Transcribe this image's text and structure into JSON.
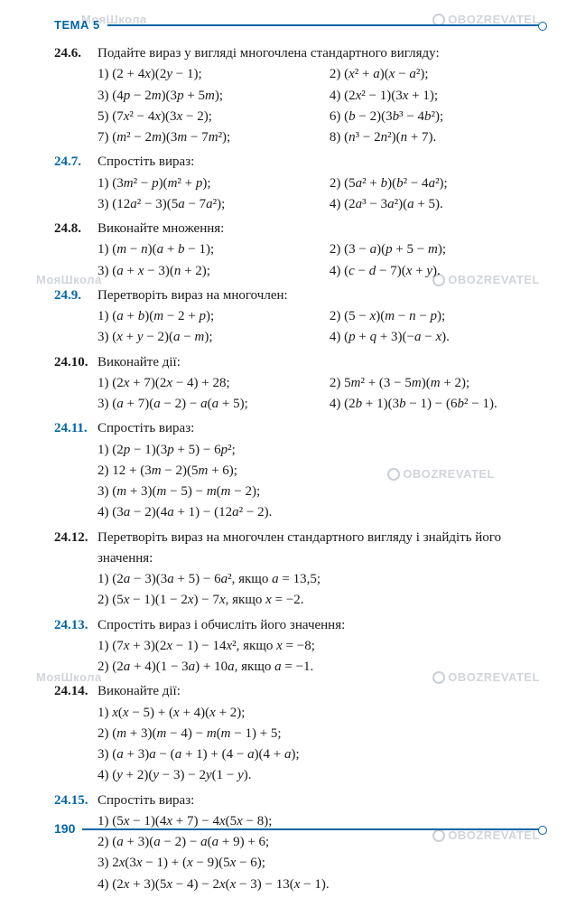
{
  "header": {
    "tema": "ТЕМА 5"
  },
  "footer": {
    "page": "190"
  },
  "watermark_text": "OBOZREVATEL",
  "watermark_prefix": "МояШкола",
  "problems": [
    {
      "num": "24.6.",
      "blue": false,
      "prompt": "Подайте вираз у вигляді многочлена стандартного вигляду:",
      "layout": "two",
      "left": [
        "1) (2 + 4x)(2y − 1);",
        "3) (4p − 2m)(3p + 5m);",
        "5) (7x² − 4x)(3x − 2);",
        "7) (m² − 2m)(3m − 7m²);"
      ],
      "right": [
        "2) (x² + a)(x − a²);",
        "4) (2x² − 1)(3x + 1);",
        "6) (b − 2)(3b³ − 4b²);",
        "8) (n³ − 2n²)(n + 7)."
      ]
    },
    {
      "num": "24.7.",
      "blue": true,
      "prompt": "Спростіть вираз:",
      "layout": "two",
      "left": [
        "1) (3m² − p)(m² + p);",
        "3) (12a² − 3)(5a − 7a²);"
      ],
      "right": [
        "2) (5a² + b)(b² − 4a²);",
        "4) (2a³ − 3a²)(a + 5)."
      ]
    },
    {
      "num": "24.8.",
      "blue": false,
      "prompt": "Виконайте множення:",
      "layout": "two",
      "left": [
        "1) (m − n)(a + b − 1);",
        "3) (a + x − 3)(n + 2);"
      ],
      "right": [
        "2) (3 − a)(p + 5 − m);",
        "4) (c − d − 7)(x + y)."
      ]
    },
    {
      "num": "24.9.",
      "blue": true,
      "prompt": "Перетворіть вираз на многочлен:",
      "layout": "two",
      "left": [
        "1) (a + b)(m − 2 + p);",
        "3) (x + y − 2)(a − m);"
      ],
      "right": [
        "2) (5 − x)(m − n − p);",
        "4) (p + q + 3)(−a − x)."
      ]
    },
    {
      "num": "24.10.",
      "blue": false,
      "prompt": "Виконайте дії:",
      "layout": "two",
      "left": [
        "1) (2x + 7)(2x − 4) + 28;",
        "3) (a + 7)(a − 2) − a(a + 5);"
      ],
      "right": [
        "2) 5m² + (3 − 5m)(m + 2);",
        "4) (2b + 1)(3b − 1) − (6b² − 1)."
      ]
    },
    {
      "num": "24.11.",
      "blue": true,
      "prompt": "Спростіть вираз:",
      "layout": "one",
      "lines": [
        "1) (2p − 1)(3p + 5) − 6p²;",
        "2) 12 + (3m − 2)(5m + 6);",
        "3) (m + 3)(m − 5) − m(m − 2);",
        "4) (3a − 2)(4a + 1) − (12a² − 2)."
      ]
    },
    {
      "num": "24.12.",
      "blue": false,
      "prompt": "Перетворіть вираз на многочлен стандартного вигляду і знайдіть його значення:",
      "layout": "one",
      "lines": [
        "1) (2a − 3)(3a + 5) − 6a², якщо a = 13,5;",
        "2) (5x − 1)(1 − 2x) − 7x, якщо x = −2."
      ]
    },
    {
      "num": "24.13.",
      "blue": true,
      "prompt": "Спростіть вираз і обчисліть його значення:",
      "layout": "one",
      "lines": [
        "1) (7x + 3)(2x − 1) − 14x², якщо x = −8;",
        "2) (2a + 4)(1 − 3a) + 10a, якщо a = −1."
      ]
    },
    {
      "num": "24.14.",
      "blue": false,
      "prompt": "Виконайте дії:",
      "layout": "one",
      "lines": [
        "1) x(x − 5) + (x + 4)(x + 2);",
        "2) (m + 3)(m − 4) − m(m − 1) + 5;",
        "3) (a + 3)a − (a + 1) + (4 − a)(4 + a);",
        "4) (y + 2)(y − 3) − 2y(1 − y)."
      ]
    },
    {
      "num": "24.15.",
      "blue": true,
      "prompt": "Спростіть вираз:",
      "layout": "one",
      "lines": [
        "1) (5x − 1)(4x + 7) − 4x(5x − 8);",
        "2) (a + 3)(a − 2) − a(a + 9) + 6;",
        "3) 2x(3x − 1) + (x − 9)(5x − 6);",
        "4) (2x + 3)(5x − 4) − 2x(x − 3) − 13(x − 1)."
      ]
    }
  ]
}
